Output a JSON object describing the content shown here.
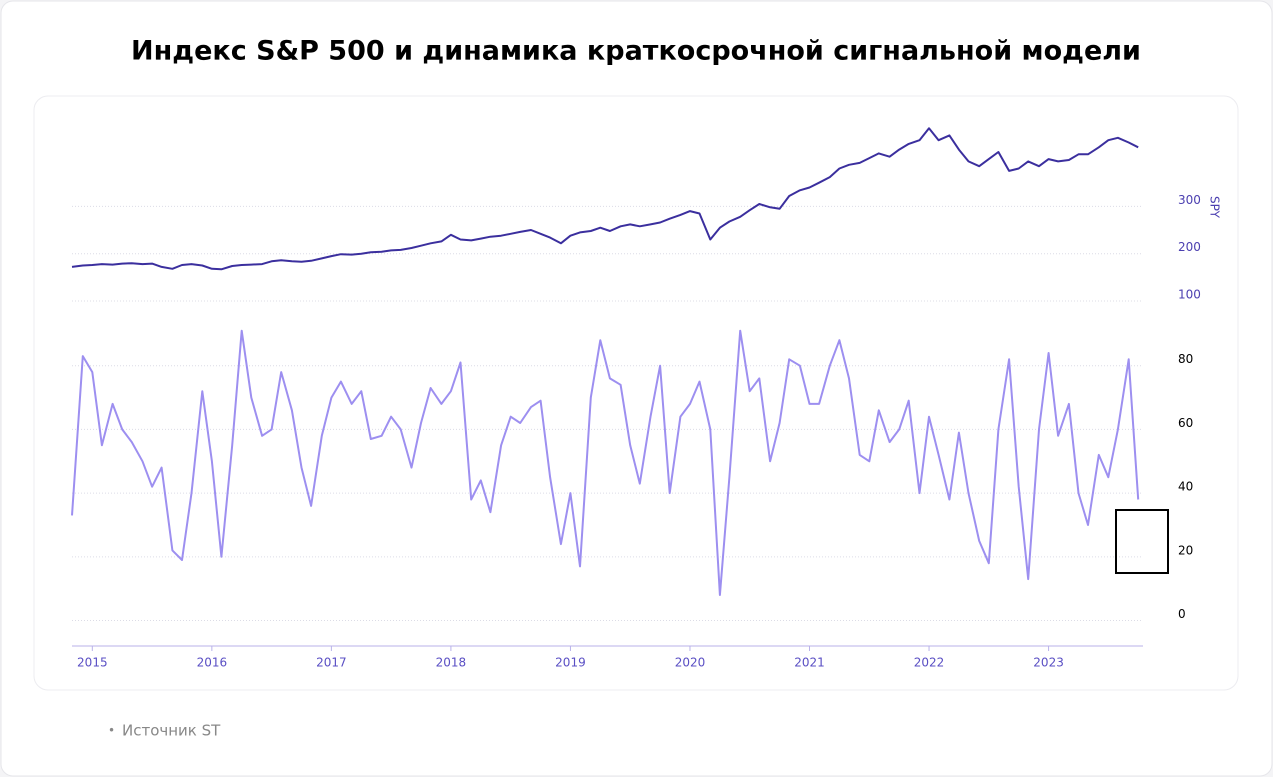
{
  "chart_data": [
    {
      "type": "line",
      "title": "Индекс S&P 500 и динамика краткосрочной сигнальной модели",
      "ylabel": "SPY",
      "x": [
        2014.83,
        2014.92,
        2015.0,
        2015.08,
        2015.17,
        2015.25,
        2015.33,
        2015.42,
        2015.5,
        2015.58,
        2015.67,
        2015.75,
        2015.83,
        2015.92,
        2016.0,
        2016.08,
        2016.17,
        2016.25,
        2016.33,
        2016.42,
        2016.5,
        2016.58,
        2016.67,
        2016.75,
        2016.83,
        2016.92,
        2017.0,
        2017.08,
        2017.17,
        2017.25,
        2017.33,
        2017.42,
        2017.5,
        2017.58,
        2017.67,
        2017.75,
        2017.83,
        2017.92,
        2018.0,
        2018.08,
        2018.17,
        2018.25,
        2018.33,
        2018.42,
        2018.5,
        2018.58,
        2018.67,
        2018.75,
        2018.83,
        2018.92,
        2019.0,
        2019.08,
        2019.17,
        2019.25,
        2019.33,
        2019.42,
        2019.5,
        2019.58,
        2019.67,
        2019.75,
        2019.83,
        2019.92,
        2020.0,
        2020.08,
        2020.17,
        2020.25,
        2020.33,
        2020.42,
        2020.5,
        2020.58,
        2020.67,
        2020.75,
        2020.83,
        2020.92,
        2021.0,
        2021.08,
        2021.17,
        2021.25,
        2021.33,
        2021.42,
        2021.5,
        2021.58,
        2021.67,
        2021.75,
        2021.83,
        2021.92,
        2022.0,
        2022.08,
        2022.17,
        2022.25,
        2022.33,
        2022.42,
        2022.5,
        2022.58,
        2022.67,
        2022.75,
        2022.83,
        2022.92,
        2023.0,
        2023.08,
        2023.17,
        2023.25,
        2023.33,
        2023.42,
        2023.5,
        2023.58,
        2023.67,
        2023.75
      ],
      "series": [
        {
          "color": "#3b2f9e",
          "values": [
            172,
            175,
            176,
            178,
            177,
            179,
            180,
            178,
            179,
            172,
            168,
            176,
            178,
            175,
            168,
            167,
            174,
            176,
            177,
            178,
            184,
            186,
            184,
            183,
            185,
            190,
            195,
            199,
            198,
            200,
            203,
            204,
            207,
            208,
            212,
            217,
            222,
            226,
            240,
            230,
            228,
            232,
            236,
            238,
            242,
            246,
            250,
            242,
            234,
            222,
            238,
            245,
            248,
            255,
            248,
            258,
            262,
            258,
            262,
            266,
            274,
            282,
            290,
            285,
            230,
            255,
            268,
            278,
            292,
            305,
            298,
            295,
            322,
            334,
            340,
            350,
            362,
            380,
            388,
            392,
            402,
            412,
            405,
            420,
            432,
            440,
            465,
            440,
            450,
            420,
            395,
            385,
            400,
            415,
            375,
            380,
            395,
            385,
            400,
            395,
            398,
            410,
            410,
            425,
            440,
            445,
            435,
            425
          ]
        }
      ],
      "xlim": [
        2014.83,
        2023.79
      ],
      "ylim": [
        100,
        490
      ],
      "yticks": [
        100,
        200,
        300
      ],
      "grid": true
    },
    {
      "type": "line",
      "x": [
        2014.83,
        2014.92,
        2015.0,
        2015.08,
        2015.17,
        2015.25,
        2015.33,
        2015.42,
        2015.5,
        2015.58,
        2015.67,
        2015.75,
        2015.83,
        2015.92,
        2016.0,
        2016.08,
        2016.17,
        2016.25,
        2016.33,
        2016.42,
        2016.5,
        2016.58,
        2016.67,
        2016.75,
        2016.83,
        2016.92,
        2017.0,
        2017.08,
        2017.17,
        2017.25,
        2017.33,
        2017.42,
        2017.5,
        2017.58,
        2017.67,
        2017.75,
        2017.83,
        2017.92,
        2018.0,
        2018.08,
        2018.17,
        2018.25,
        2018.33,
        2018.42,
        2018.5,
        2018.58,
        2018.67,
        2018.75,
        2018.83,
        2018.92,
        2019.0,
        2019.08,
        2019.17,
        2019.25,
        2019.33,
        2019.42,
        2019.5,
        2019.58,
        2019.67,
        2019.75,
        2019.83,
        2019.92,
        2020.0,
        2020.08,
        2020.17,
        2020.25,
        2020.33,
        2020.42,
        2020.5,
        2020.58,
        2020.67,
        2020.75,
        2020.83,
        2020.92,
        2021.0,
        2021.08,
        2021.17,
        2021.25,
        2021.33,
        2021.42,
        2021.5,
        2021.58,
        2021.67,
        2021.75,
        2021.83,
        2021.92,
        2022.0,
        2022.08,
        2022.17,
        2022.25,
        2022.33,
        2022.42,
        2022.5,
        2022.58,
        2022.67,
        2022.75,
        2022.83,
        2022.92,
        2023.0,
        2023.08,
        2023.17,
        2023.25,
        2023.33,
        2023.42,
        2023.5,
        2023.58,
        2023.67,
        2023.75
      ],
      "series": [
        {
          "color": "#9d8ff0",
          "values": [
            33,
            83,
            78,
            55,
            68,
            60,
            56,
            50,
            42,
            48,
            22,
            19,
            40,
            72,
            50,
            20,
            55,
            91,
            70,
            58,
            60,
            78,
            66,
            48,
            36,
            58,
            70,
            75,
            68,
            72,
            57,
            58,
            64,
            60,
            48,
            62,
            73,
            68,
            72,
            81,
            38,
            44,
            34,
            55,
            64,
            62,
            67,
            69,
            45,
            24,
            40,
            17,
            70,
            88,
            76,
            74,
            55,
            43,
            64,
            80,
            40,
            64,
            68,
            75,
            60,
            8,
            45,
            91,
            72,
            76,
            50,
            62,
            82,
            80,
            68,
            68,
            80,
            88,
            76,
            52,
            50,
            66,
            56,
            60,
            69,
            40,
            64,
            52,
            38,
            59,
            40,
            25,
            18,
            60,
            82,
            42,
            13,
            60,
            84,
            58,
            68,
            40,
            30,
            52,
            45,
            60,
            82,
            38
          ]
        }
      ],
      "xlim": [
        2014.83,
        2023.79
      ],
      "xticks": [
        2015,
        2016,
        2017,
        2018,
        2019,
        2020,
        2021,
        2022,
        2023
      ],
      "ylim": [
        -8,
        100
      ],
      "yticks": [
        0,
        20,
        40,
        60,
        80
      ],
      "grid": true
    }
  ],
  "footer": {
    "source": "Источник ST"
  }
}
